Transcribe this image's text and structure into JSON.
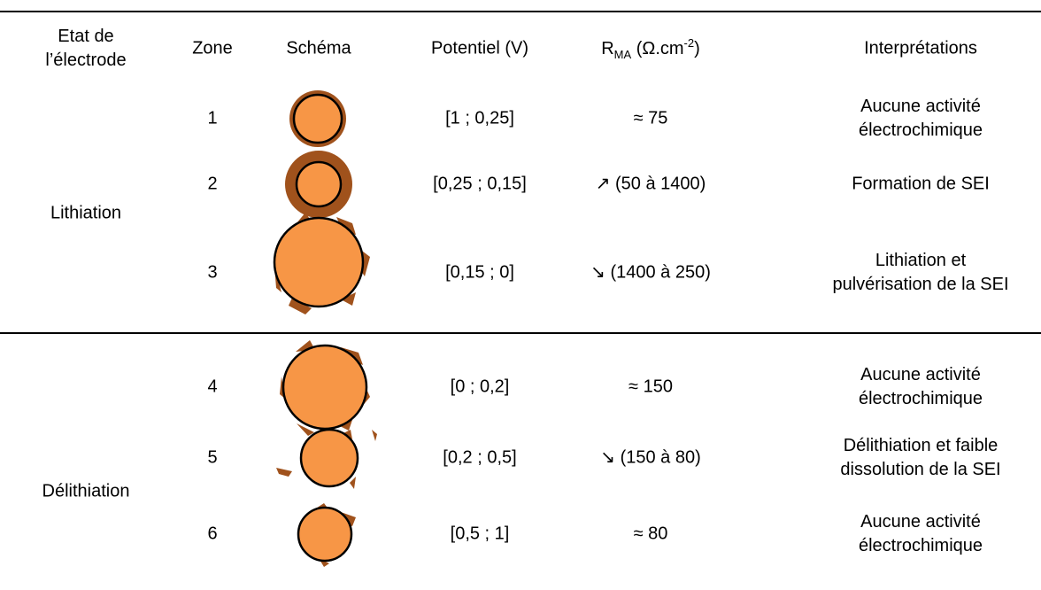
{
  "header": {
    "etat": [
      "Etat de",
      "l’électrode"
    ],
    "zone": "Zone",
    "schema": "Schéma",
    "potentiel": "Potentiel (V)",
    "r_ma": {
      "symbol": "R",
      "sub": "MA",
      "unit": " (Ω.cm",
      "sup": "-2",
      "close": ")"
    },
    "interpretations": "Interprétations"
  },
  "groups": [
    {
      "label": "Lithiation"
    },
    {
      "label": "Délithiation"
    }
  ],
  "rows": [
    {
      "zone": "1",
      "potentiel": "[1 ; 0,25]",
      "r_ma": "≈ 75",
      "interpretation": [
        "Aucune activité",
        "électrochimique"
      ]
    },
    {
      "zone": "2",
      "potentiel": "[0,25 ; 0,15]",
      "r_ma": "↗ (50 à 1400)",
      "interpretation": [
        "Formation de SEI"
      ]
    },
    {
      "zone": "3",
      "potentiel": "[0,15 ; 0]",
      "r_ma": "↘ (1400 à 250)",
      "interpretation": [
        "Lithiation et",
        "pulvérisation de la SEI"
      ]
    },
    {
      "zone": "4",
      "potentiel": "[0 ; 0,2]",
      "r_ma": "≈ 150",
      "interpretation": [
        "Aucune activité",
        "électrochimique"
      ]
    },
    {
      "zone": "5",
      "potentiel": "[0,2 ; 0,5]",
      "r_ma": "↘ (150 à 80)",
      "interpretation": [
        "Délithiation et faible",
        "dissolution de la SEI"
      ]
    },
    {
      "zone": "6",
      "potentiel": "[0,5 ; 1]",
      "r_ma": "≈ 80",
      "interpretation": [
        "Aucune activité",
        "électrochimique"
      ]
    }
  ]
}
